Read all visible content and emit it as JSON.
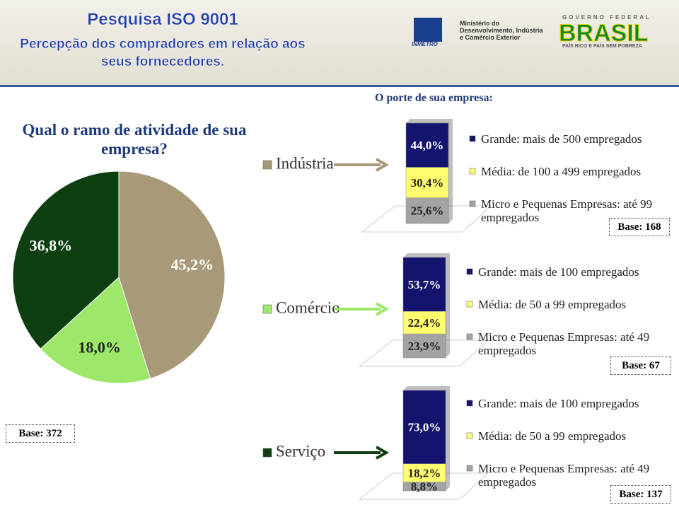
{
  "header": {
    "title": "Pesquisa ISO 9001",
    "subtitle": "Percepção dos compradores em relação aos seus fornecedores.",
    "inmetro": "INMETRO",
    "ministry": [
      "Ministério do",
      "Desenvolvimento, Indústria",
      "e Comércio Exterior"
    ],
    "government": "GOVERNO FEDERAL",
    "brand": "BRASIL",
    "slogan": "PAÍS RICO E PAÍS SEM POBREZA"
  },
  "chart_data": [
    {
      "type": "pie",
      "title": "Qual o ramo de atividade de sua empresa?",
      "categories": [
        "Indústria",
        "Comércio",
        "Serviço"
      ],
      "values": [
        45.2,
        18.0,
        36.8
      ],
      "value_labels": [
        "45,2%",
        "18,0%",
        "36,8%"
      ],
      "colors": [
        "#a89a78",
        "#9de86a",
        "#0e3f10"
      ],
      "base": "Base: 372"
    },
    {
      "type": "stacked-bar",
      "title": "O porte de sua empresa:",
      "series": [
        {
          "name": "Micro e Pequenas Empresas: até 99 empregados",
          "color": "#a3a3a3",
          "values": [
            25.6
          ],
          "value_labels": [
            "25,6%"
          ]
        },
        {
          "name": "Média: de 100 a 499 empregados",
          "color": "#ffff70",
          "values": [
            30.4
          ],
          "value_labels": [
            "30,4%"
          ]
        },
        {
          "name": "Grande: mais de 500 empregados",
          "color": "#14146e",
          "values": [
            44.0
          ],
          "value_labels": [
            "44,0%"
          ]
        }
      ],
      "base": "Base: 168"
    },
    {
      "type": "stacked-bar",
      "series": [
        {
          "name": "Micro e Pequenas Empresas: até 49 empregados",
          "color": "#a3a3a3",
          "values": [
            23.9
          ],
          "value_labels": [
            "23,9%"
          ]
        },
        {
          "name": "Média: de 50 a 99 empregados",
          "color": "#ffff70",
          "values": [
            22.4
          ],
          "value_labels": [
            "22,4%"
          ]
        },
        {
          "name": "Grande: mais de 100 empregados",
          "color": "#14146e",
          "values": [
            53.7
          ],
          "value_labels": [
            "53,7%"
          ]
        }
      ],
      "base": "Base: 67"
    },
    {
      "type": "stacked-bar",
      "series": [
        {
          "name": "Micro e Pequenas Empresas: até 49 empregados",
          "color": "#a3a3a3",
          "values": [
            8.8
          ],
          "value_labels": [
            "8,8%"
          ]
        },
        {
          "name": "Média: de 50 a 99 empregados",
          "color": "#ffff70",
          "values": [
            18.2
          ],
          "value_labels": [
            "18,2%"
          ]
        },
        {
          "name": "Grande: mais de 100 empregados",
          "color": "#14146e",
          "values": [
            73.0
          ],
          "value_labels": [
            "73,0%"
          ]
        }
      ],
      "base": "Base: 137"
    }
  ]
}
